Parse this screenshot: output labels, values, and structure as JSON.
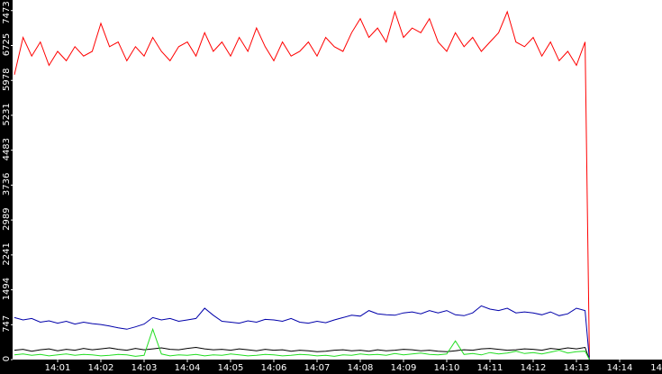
{
  "chart_data": {
    "type": "line",
    "x": [
      0,
      0.2,
      0.4,
      0.6,
      0.8,
      1.0,
      1.2,
      1.4,
      1.6,
      1.8,
      2.0,
      2.2,
      2.4,
      2.6,
      2.8,
      3.0,
      3.2,
      3.4,
      3.6,
      3.8,
      4.0,
      4.2,
      4.4,
      4.6,
      4.8,
      5.0,
      5.2,
      5.4,
      5.6,
      5.8,
      6.0,
      6.2,
      6.4,
      6.6,
      6.8,
      7.0,
      7.2,
      7.4,
      7.6,
      7.8,
      8.0,
      8.2,
      8.4,
      8.6,
      8.8,
      9.0,
      9.2,
      9.4,
      9.6,
      9.8,
      10.0,
      10.2,
      10.4,
      10.6,
      10.8,
      11.0,
      11.2,
      11.4,
      11.6,
      11.8,
      12.0,
      12.2,
      12.4,
      12.6,
      12.8,
      13.0,
      13.2,
      13.3
    ],
    "series": [
      {
        "color": "#ff0000",
        "values": [
          6100,
          6900,
          6500,
          6800,
          6300,
          6600,
          6400,
          6700,
          6500,
          6600,
          7200,
          6700,
          6800,
          6400,
          6700,
          6500,
          6900,
          6600,
          6400,
          6700,
          6800,
          6500,
          7000,
          6600,
          6800,
          6500,
          6900,
          6600,
          7100,
          6700,
          6400,
          6800,
          6500,
          6600,
          6800,
          6500,
          6900,
          6700,
          6600,
          7000,
          7300,
          6900,
          7100,
          6800,
          7450,
          6900,
          7100,
          7000,
          7300,
          6800,
          6600,
          7000,
          6700,
          6900,
          6600,
          6800,
          7000,
          7450,
          6800,
          6700,
          6900,
          6500,
          6800,
          6400,
          6600,
          6300,
          6800,
          50
        ]
      },
      {
        "color": "#0000aa",
        "values": [
          900,
          850,
          880,
          800,
          830,
          780,
          820,
          760,
          800,
          770,
          750,
          720,
          680,
          650,
          700,
          760,
          900,
          850,
          880,
          820,
          850,
          880,
          1100,
          950,
          820,
          800,
          780,
          830,
          800,
          860,
          850,
          820,
          880,
          800,
          780,
          820,
          790,
          850,
          900,
          950,
          930,
          1050,
          980,
          960,
          950,
          1000,
          1020,
          980,
          1050,
          1000,
          1050,
          960,
          940,
          1000,
          1150,
          1080,
          1050,
          1100,
          1000,
          1020,
          1000,
          960,
          1020,
          940,
          980,
          1100,
          1050,
          0
        ]
      },
      {
        "color": "#000000",
        "values": [
          200,
          220,
          180,
          210,
          230,
          190,
          220,
          200,
          240,
          210,
          230,
          250,
          220,
          200,
          240,
          210,
          230,
          250,
          220,
          210,
          240,
          260,
          230,
          210,
          220,
          200,
          230,
          210,
          190,
          220,
          200,
          210,
          180,
          200,
          190,
          170,
          180,
          200,
          210,
          190,
          200,
          180,
          210,
          190,
          200,
          220,
          210,
          190,
          200,
          180,
          170,
          190,
          210,
          200,
          230,
          240,
          220,
          200,
          210,
          230,
          220,
          200,
          240,
          220,
          250,
          230,
          260,
          0
        ]
      },
      {
        "color": "#22dd22",
        "values": [
          100,
          120,
          90,
          110,
          80,
          100,
          120,
          90,
          110,
          100,
          80,
          90,
          110,
          100,
          70,
          90,
          650,
          120,
          80,
          100,
          90,
          110,
          80,
          100,
          90,
          120,
          100,
          80,
          90,
          110,
          100,
          80,
          90,
          110,
          100,
          80,
          90,
          70,
          100,
          90,
          120,
          100,
          110,
          90,
          130,
          100,
          120,
          140,
          110,
          100,
          120,
          400,
          110,
          130,
          100,
          150,
          120,
          140,
          180,
          130,
          150,
          120,
          160,
          200,
          140,
          170,
          180,
          0
        ]
      }
    ],
    "xlim": [
      0,
      15
    ],
    "ylim": [
      0,
      7700
    ],
    "yticks": [
      0,
      747,
      1494,
      2241,
      2989,
      3736,
      4483,
      5231,
      5978,
      6725,
      7473
    ],
    "xticks": [
      {
        "value": 1,
        "label": "14:01"
      },
      {
        "value": 2,
        "label": "14:02"
      },
      {
        "value": 3,
        "label": "14:03"
      },
      {
        "value": 4,
        "label": "14:04"
      },
      {
        "value": 5,
        "label": "14:05"
      },
      {
        "value": 6,
        "label": "14:06"
      },
      {
        "value": 7,
        "label": "14:07"
      },
      {
        "value": 8,
        "label": "14:08"
      },
      {
        "value": 9,
        "label": "14:09"
      },
      {
        "value": 10,
        "label": "14:10"
      },
      {
        "value": 11,
        "label": "14:11"
      },
      {
        "value": 12,
        "label": "14:12"
      },
      {
        "value": 13,
        "label": "14:13"
      },
      {
        "value": 14,
        "label": "14:14"
      },
      {
        "value": 15,
        "label": "14"
      }
    ]
  }
}
